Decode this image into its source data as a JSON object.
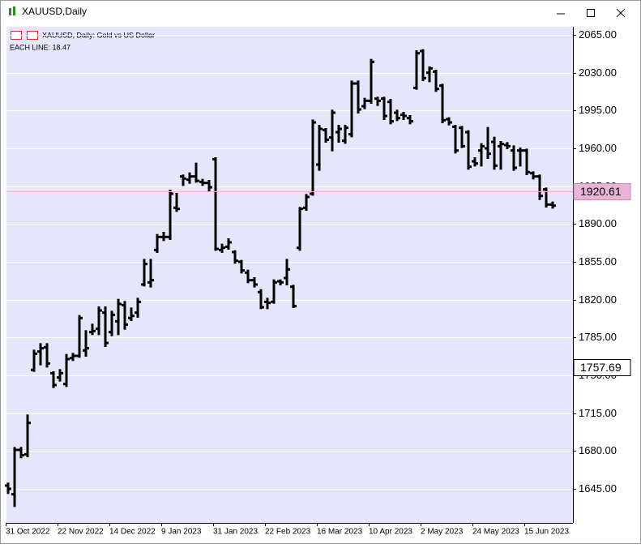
{
  "window": {
    "title": "XAUUSD,Daily"
  },
  "chart_data": {
    "type": "ohlc",
    "title": "XAUUSD, Daily:  Gold vs US Dollar",
    "subtitle": "EACH LINE: 18.47",
    "color": "#000000",
    "grid": true,
    "ylim": [
      1613.5,
      2072.5
    ],
    "yticks": [
      {
        "value": 2065,
        "label": "2065.00"
      },
      {
        "value": 2030,
        "label": "2030.00"
      },
      {
        "value": 1995,
        "label": "1995.00"
      },
      {
        "value": 1960,
        "label": "1960.00"
      },
      {
        "value": 1925,
        "label": "1925.00"
      },
      {
        "value": 1890,
        "label": "1890.00"
      },
      {
        "value": 1855,
        "label": "1855.00"
      },
      {
        "value": 1820,
        "label": "1820.00"
      },
      {
        "value": 1785,
        "label": "1785.00"
      },
      {
        "value": 1750,
        "label": "1750.00"
      },
      {
        "value": 1715,
        "label": "1715.00"
      },
      {
        "value": 1680,
        "label": "1680.00"
      },
      {
        "value": 1645,
        "label": "1645.00"
      }
    ],
    "current_price": 1920.61,
    "level_price": 1757.69,
    "categories": [
      "31 Oct 2022",
      null,
      null,
      null,
      null,
      null,
      null,
      null,
      "22 Nov 2022",
      null,
      null,
      null,
      null,
      null,
      null,
      null,
      "14 Dec 2022",
      null,
      null,
      null,
      null,
      null,
      null,
      null,
      "9 Jan 2023",
      null,
      null,
      null,
      null,
      null,
      null,
      null,
      "31 Jan 2023",
      null,
      null,
      null,
      null,
      null,
      null,
      null,
      "22 Feb 2023",
      null,
      null,
      null,
      null,
      null,
      null,
      null,
      "16 Mar 2023",
      null,
      null,
      null,
      null,
      null,
      null,
      null,
      "10 Apr 2023",
      null,
      null,
      null,
      null,
      null,
      null,
      null,
      "2 May 2023",
      null,
      null,
      null,
      null,
      null,
      null,
      null,
      "24 May 2023",
      null,
      null,
      null,
      null,
      null,
      null,
      null,
      "15 Jun 2023",
      null,
      null,
      null,
      null
    ],
    "open": [
      1648,
      1640,
      1681,
      1677,
      1755,
      1772,
      1776,
      1752,
      1748,
      1742,
      1766,
      1768,
      1773,
      1790,
      1793,
      1808,
      1790,
      1800,
      1815,
      1803,
      1808,
      1834,
      1836,
      1866,
      1878,
      1878,
      1905,
      1934,
      1931,
      1934,
      1929,
      1928,
      1950,
      1866,
      1869,
      1864,
      1855,
      1845,
      1838,
      1827,
      1818,
      1818,
      1837,
      1840,
      1832,
      1868,
      1905,
      1918,
      1945,
      1977,
      1970,
      1975,
      1967,
      1973,
      2020,
      1999,
      2004,
      2006,
      2006,
      2003,
      1993,
      1991,
      1988,
      2016,
      2050,
      2030,
      2031,
      2018,
      1987,
      1980,
      1979,
      1975,
      1948,
      1958,
      1960,
      1966,
      1962,
      1963,
      1958,
      1958,
      1958,
      1937,
      1934,
      1922,
      1908
    ],
    "high": [
      1650,
      1683,
      1683,
      1713,
      1773,
      1779,
      1779,
      1753,
      1755,
      1769,
      1770,
      1805,
      1791,
      1797,
      1813,
      1813,
      1809,
      1820,
      1818,
      1812,
      1821,
      1857,
      1857,
      1880,
      1882,
      1921,
      1918,
      1935,
      1937,
      1946,
      1931,
      1930,
      1951,
      1871,
      1876,
      1865,
      1856,
      1847,
      1840,
      1829,
      1821,
      1838,
      1838,
      1857,
      1833,
      1905,
      1917,
      1986,
      1981,
      1978,
      1995,
      1981,
      1981,
      2022,
      2022,
      2006,
      2042,
      2007,
      2007,
      2005,
      1995,
      1993,
      1990,
      2050,
      2051,
      2035,
      2032,
      2019,
      1988,
      1981,
      1980,
      1976,
      1951,
      1964,
      1979,
      1970,
      1966,
      1965,
      1962,
      1960,
      1959,
      1938,
      1935,
      1923,
      1910
    ],
    "low": [
      1641,
      1629,
      1674,
      1675,
      1754,
      1760,
      1758,
      1739,
      1745,
      1740,
      1764,
      1767,
      1768,
      1788,
      1788,
      1777,
      1787,
      1788,
      1793,
      1801,
      1804,
      1833,
      1832,
      1864,
      1875,
      1876,
      1902,
      1926,
      1928,
      1929,
      1926,
      1921,
      1866,
      1864,
      1867,
      1854,
      1845,
      1836,
      1832,
      1812,
      1812,
      1817,
      1834,
      1834,
      1813,
      1866,
      1903,
      1917,
      1940,
      1966,
      1958,
      1966,
      1965,
      1971,
      1993,
      1997,
      2002,
      2000,
      1987,
      1983,
      1986,
      1987,
      1983,
      2015,
      2023,
      2022,
      2013,
      1984,
      1982,
      1956,
      1961,
      1941,
      1944,
      1944,
      1951,
      1941,
      1941,
      1960,
      1940,
      1944,
      1936,
      1932,
      1913,
      1906,
      1905
    ],
    "close": [
      1645,
      1681,
      1676,
      1706,
      1770,
      1775,
      1761,
      1741,
      1752,
      1765,
      1768,
      1803,
      1775,
      1791,
      1810,
      1780,
      1806,
      1816,
      1797,
      1805,
      1818,
      1853,
      1838,
      1878,
      1878,
      1918,
      1904,
      1932,
      1934,
      1930,
      1928,
      1924,
      1867,
      1868,
      1873,
      1856,
      1847,
      1838,
      1834,
      1813,
      1817,
      1836,
      1836,
      1848,
      1814,
      1904,
      1915,
      1984,
      1978,
      1968,
      1993,
      1978,
      1979,
      2020,
      1996,
      2004,
      2040,
      2004,
      1990,
      1985,
      1988,
      1990,
      1985,
      2048,
      2025,
      2034,
      2015,
      1986,
      1984,
      1958,
      1962,
      1943,
      1946,
      1962,
      1955,
      1944,
      1964,
      1962,
      1942,
      1958,
      1938,
      1934,
      1916,
      1908,
      1907
    ]
  }
}
